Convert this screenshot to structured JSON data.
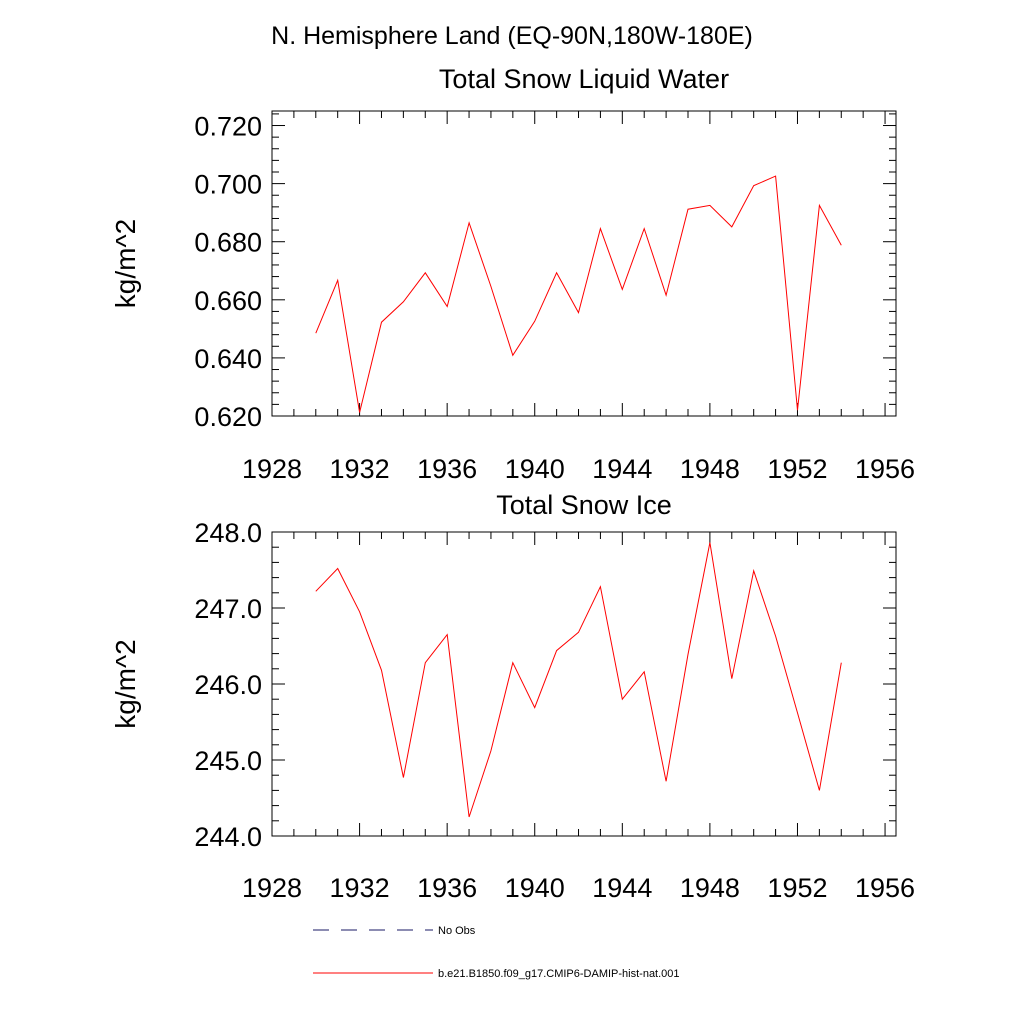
{
  "page": {
    "title": "N. Hemisphere Land (EQ-90N,180W-180E)"
  },
  "chart_data": [
    {
      "type": "line",
      "title": "Total Snow Liquid Water",
      "xlabel": "",
      "ylabel": "kg/m^2",
      "xlim": [
        1928,
        1956.5
      ],
      "ylim": [
        0.62,
        0.725
      ],
      "xticks": [
        1928,
        1932,
        1936,
        1940,
        1944,
        1948,
        1952,
        1956
      ],
      "yticks": [
        0.62,
        0.64,
        0.66,
        0.68,
        0.7,
        0.72
      ],
      "ytick_labels": [
        "0.620",
        "0.640",
        "0.660",
        "0.680",
        "0.700",
        "0.720"
      ],
      "grid": false,
      "series": [
        {
          "name": "b.e21.B1850.f09_g17.CMIP6-DAMIP-hist-nat.001",
          "color": "#ff0000",
          "x": [
            1930,
            1931,
            1932,
            1933,
            1934,
            1935,
            1936,
            1937,
            1938,
            1939,
            1940,
            1941,
            1942,
            1943,
            1944,
            1945,
            1946,
            1947,
            1948,
            1949,
            1950,
            1951,
            1952,
            1953,
            1954
          ],
          "y": [
            0.6485,
            0.6667,
            0.6212,
            0.6523,
            0.6593,
            0.6693,
            0.6577,
            0.6865,
            0.6646,
            0.6409,
            0.6526,
            0.6693,
            0.6556,
            0.6845,
            0.6636,
            0.6845,
            0.6616,
            0.6912,
            0.6925,
            0.6851,
            0.6993,
            0.7026,
            0.622,
            0.6925,
            0.6788
          ]
        }
      ]
    },
    {
      "type": "line",
      "title": "Total Snow Ice",
      "xlabel": "",
      "ylabel": "kg/m^2",
      "xlim": [
        1928,
        1956.5
      ],
      "ylim": [
        244.0,
        248.0
      ],
      "xticks": [
        1928,
        1932,
        1936,
        1940,
        1944,
        1948,
        1952,
        1956
      ],
      "yticks": [
        244.0,
        245.0,
        246.0,
        247.0,
        248.0
      ],
      "ytick_labels": [
        "244.0",
        "245.0",
        "246.0",
        "247.0",
        "248.0"
      ],
      "grid": false,
      "series": [
        {
          "name": "b.e21.B1850.f09_g17.CMIP6-DAMIP-hist-nat.001",
          "color": "#ff0000",
          "x": [
            1930,
            1931,
            1932,
            1933,
            1934,
            1935,
            1936,
            1937,
            1938,
            1939,
            1940,
            1941,
            1942,
            1943,
            1944,
            1945,
            1946,
            1947,
            1948,
            1949,
            1950,
            1951,
            1952,
            1953,
            1954
          ],
          "y": [
            247.22,
            247.52,
            246.95,
            246.18,
            244.77,
            246.28,
            246.65,
            244.25,
            245.12,
            246.28,
            245.69,
            246.44,
            246.68,
            247.28,
            245.8,
            246.16,
            244.72,
            246.39,
            247.86,
            246.07,
            247.49,
            246.63,
            245.62,
            244.6,
            246.28
          ]
        }
      ]
    }
  ],
  "legend": {
    "placement": "bottom-left",
    "entries": [
      {
        "label": "No Obs",
        "color": "#1a1a66",
        "style": "dashed"
      },
      {
        "label": "b.e21.B1850.f09_g17.CMIP6-DAMIP-hist-nat.001",
        "color": "#ff0000",
        "style": "solid"
      }
    ]
  }
}
